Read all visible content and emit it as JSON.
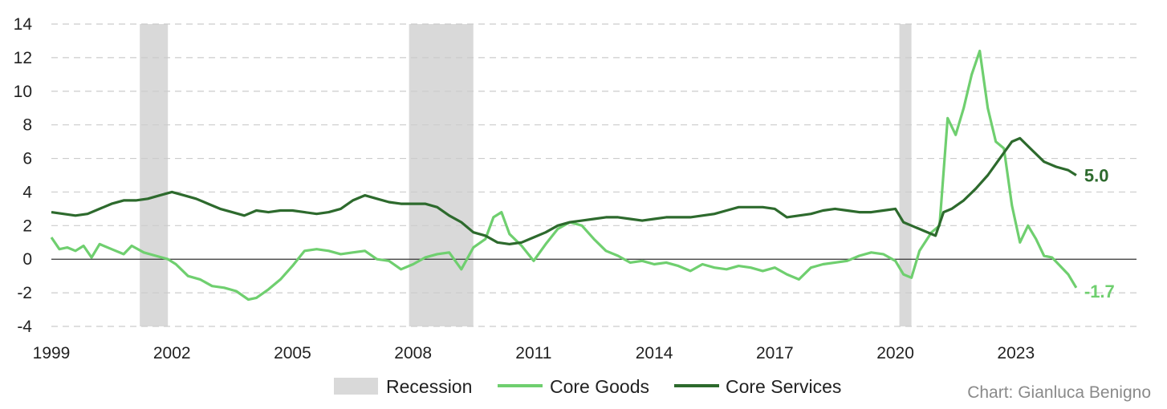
{
  "credit": "Chart: Gianluca Benigno",
  "colors": {
    "recession": "#d9d9d9",
    "core_goods": "#6fcf6f",
    "core_services": "#2d6a2d",
    "grid": "#cccccc",
    "zero_line": "#333333"
  },
  "chart_data": {
    "type": "line",
    "title": "",
    "xlabel": "",
    "ylabel": "",
    "xlim": [
      1999.0,
      2026.0
    ],
    "ylim": [
      -4,
      14
    ],
    "x_ticks": [
      "1999",
      "2002",
      "2005",
      "2008",
      "2011",
      "2014",
      "2017",
      "2020",
      "2023"
    ],
    "y_ticks": [
      "14",
      "12",
      "10",
      "8",
      "6",
      "4",
      "2",
      "0",
      "-2",
      "-4"
    ],
    "grid": "horizontal dashed",
    "legend_position": "bottom",
    "legend": [
      "Recession",
      "Core Goods",
      "Core Services"
    ],
    "recessions": [
      [
        2001.2,
        2001.9
      ],
      [
        2007.9,
        2009.5
      ],
      [
        2020.1,
        2020.4
      ]
    ],
    "series": [
      {
        "name": "Core Goods",
        "color": "#6fcf6f",
        "end_label": "-1.7",
        "x": [
          1999.0,
          1999.2,
          1999.4,
          1999.6,
          1999.8,
          2000.0,
          2000.2,
          2000.5,
          2000.8,
          2001.0,
          2001.3,
          2001.6,
          2001.9,
          2002.1,
          2002.4,
          2002.7,
          2003.0,
          2003.3,
          2003.6,
          2003.9,
          2004.1,
          2004.4,
          2004.7,
          2005.0,
          2005.3,
          2005.6,
          2005.9,
          2006.2,
          2006.5,
          2006.8,
          2007.1,
          2007.4,
          2007.7,
          2008.0,
          2008.3,
          2008.6,
          2008.9,
          2009.2,
          2009.5,
          2009.8,
          2010.0,
          2010.2,
          2010.4,
          2010.7,
          2011.0,
          2011.3,
          2011.6,
          2011.9,
          2012.2,
          2012.5,
          2012.8,
          2013.1,
          2013.4,
          2013.7,
          2014.0,
          2014.3,
          2014.6,
          2014.9,
          2015.2,
          2015.5,
          2015.8,
          2016.1,
          2016.4,
          2016.7,
          2017.0,
          2017.3,
          2017.6,
          2017.9,
          2018.2,
          2018.5,
          2018.8,
          2019.1,
          2019.4,
          2019.7,
          2020.0,
          2020.2,
          2020.4,
          2020.6,
          2020.9,
          2021.1,
          2021.3,
          2021.5,
          2021.7,
          2021.9,
          2022.1,
          2022.3,
          2022.5,
          2022.7,
          2022.9,
          2023.1,
          2023.3,
          2023.5,
          2023.7,
          2023.9,
          2024.1,
          2024.3,
          2024.5
        ],
        "y": [
          1.3,
          0.6,
          0.7,
          0.5,
          0.8,
          0.1,
          0.9,
          0.6,
          0.3,
          0.8,
          0.4,
          0.2,
          0.0,
          -0.3,
          -1.0,
          -1.2,
          -1.6,
          -1.7,
          -1.9,
          -2.4,
          -2.3,
          -1.8,
          -1.2,
          -0.4,
          0.5,
          0.6,
          0.5,
          0.3,
          0.4,
          0.5,
          0.0,
          -0.1,
          -0.6,
          -0.3,
          0.1,
          0.3,
          0.4,
          -0.6,
          0.7,
          1.2,
          2.5,
          2.8,
          1.5,
          0.8,
          -0.1,
          0.9,
          1.8,
          2.2,
          2.0,
          1.2,
          0.5,
          0.2,
          -0.2,
          -0.1,
          -0.3,
          -0.2,
          -0.4,
          -0.7,
          -0.3,
          -0.5,
          -0.6,
          -0.4,
          -0.5,
          -0.7,
          -0.5,
          -0.9,
          -1.2,
          -0.5,
          -0.3,
          -0.2,
          -0.1,
          0.2,
          0.4,
          0.3,
          -0.1,
          -0.9,
          -1.1,
          0.5,
          1.6,
          2.0,
          8.4,
          7.4,
          9.0,
          11.0,
          12.4,
          9.0,
          7.0,
          6.6,
          3.2,
          1.0,
          2.0,
          1.2,
          0.2,
          0.1,
          -0.4,
          -0.9,
          -1.7
        ]
      },
      {
        "name": "Core Services",
        "color": "#2d6a2d",
        "end_label": "5.0",
        "x": [
          1999.0,
          1999.3,
          1999.6,
          1999.9,
          2000.2,
          2000.5,
          2000.8,
          2001.1,
          2001.4,
          2001.7,
          2002.0,
          2002.3,
          2002.6,
          2002.9,
          2003.2,
          2003.5,
          2003.8,
          2004.1,
          2004.4,
          2004.7,
          2005.0,
          2005.3,
          2005.6,
          2005.9,
          2006.2,
          2006.5,
          2006.8,
          2007.1,
          2007.4,
          2007.7,
          2008.0,
          2008.3,
          2008.6,
          2008.9,
          2009.2,
          2009.5,
          2009.8,
          2010.1,
          2010.4,
          2010.7,
          2011.0,
          2011.3,
          2011.6,
          2011.9,
          2012.2,
          2012.5,
          2012.8,
          2013.1,
          2013.4,
          2013.7,
          2014.0,
          2014.3,
          2014.6,
          2014.9,
          2015.2,
          2015.5,
          2015.8,
          2016.1,
          2016.4,
          2016.7,
          2017.0,
          2017.3,
          2017.6,
          2017.9,
          2018.2,
          2018.5,
          2018.8,
          2019.1,
          2019.4,
          2019.7,
          2020.0,
          2020.2,
          2020.4,
          2020.7,
          2021.0,
          2021.2,
          2021.4,
          2021.7,
          2022.0,
          2022.3,
          2022.6,
          2022.9,
          2023.1,
          2023.4,
          2023.7,
          2024.0,
          2024.3,
          2024.5
        ],
        "y": [
          2.8,
          2.7,
          2.6,
          2.7,
          3.0,
          3.3,
          3.5,
          3.5,
          3.6,
          3.8,
          4.0,
          3.8,
          3.6,
          3.3,
          3.0,
          2.8,
          2.6,
          2.9,
          2.8,
          2.9,
          2.9,
          2.8,
          2.7,
          2.8,
          3.0,
          3.5,
          3.8,
          3.6,
          3.4,
          3.3,
          3.3,
          3.3,
          3.1,
          2.6,
          2.2,
          1.6,
          1.4,
          1.0,
          0.9,
          1.0,
          1.3,
          1.6,
          2.0,
          2.2,
          2.3,
          2.4,
          2.5,
          2.5,
          2.4,
          2.3,
          2.4,
          2.5,
          2.5,
          2.5,
          2.6,
          2.7,
          2.9,
          3.1,
          3.1,
          3.1,
          3.0,
          2.5,
          2.6,
          2.7,
          2.9,
          3.0,
          2.9,
          2.8,
          2.8,
          2.9,
          3.0,
          2.2,
          2.0,
          1.7,
          1.4,
          2.8,
          3.0,
          3.5,
          4.2,
          5.0,
          6.0,
          7.0,
          7.2,
          6.5,
          5.8,
          5.5,
          5.3,
          5.0
        ]
      }
    ]
  }
}
